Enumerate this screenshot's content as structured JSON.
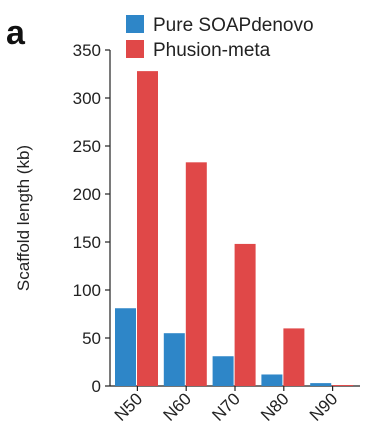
{
  "chart_data": {
    "type": "bar",
    "panel_label": "a",
    "categories": [
      "N50",
      "N60",
      "N70",
      "N80",
      "N90"
    ],
    "series": [
      {
        "name": "Pure SOAPdenovo",
        "values": [
          81,
          55,
          31,
          12,
          3
        ]
      },
      {
        "name": "Phusion-meta",
        "values": [
          328,
          233,
          148,
          60,
          1
        ]
      }
    ],
    "xlabel": "",
    "ylabel": "Scaffold length (kb)",
    "ylim": [
      0,
      350
    ],
    "yticks": [
      0,
      50,
      100,
      150,
      200,
      250,
      300,
      350
    ],
    "grid": false,
    "legend_position": "top-right",
    "colors": {
      "Pure SOAPdenovo": "#2e86c8",
      "Phusion-meta": "#e04848"
    }
  }
}
